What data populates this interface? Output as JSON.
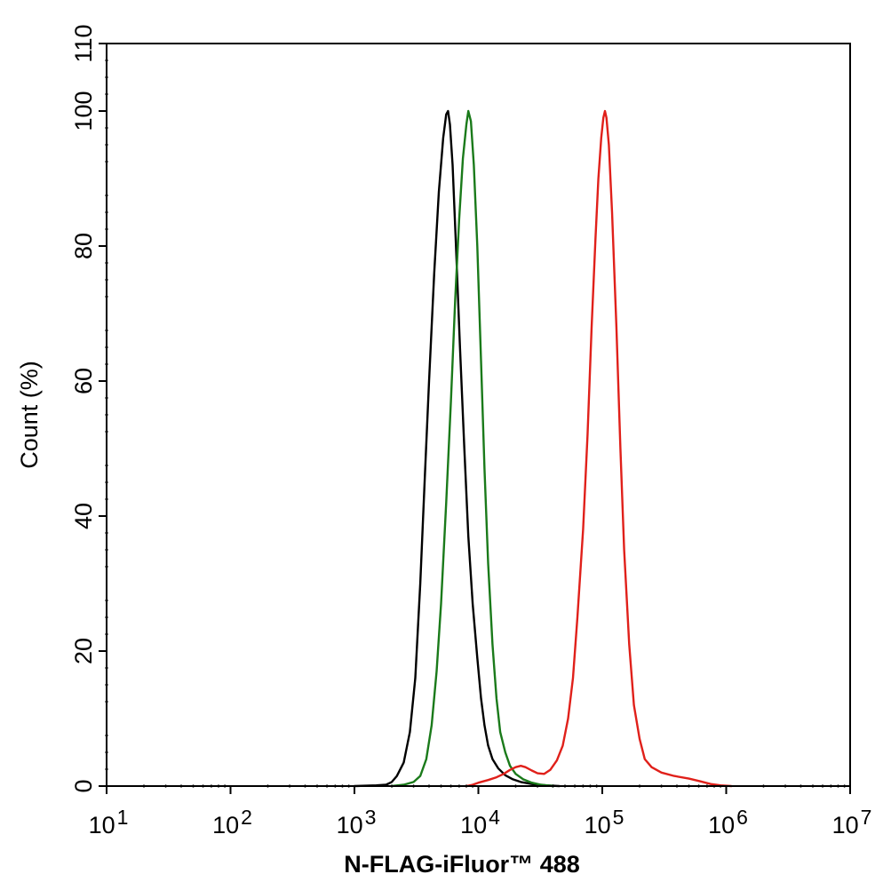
{
  "chart_data": {
    "type": "line",
    "title": "",
    "xlabel": "N-FLAG-iFluor™ 488",
    "ylabel": "Count  (%)",
    "x_scale": "log",
    "xlim": [
      10,
      10000000
    ],
    "ylim": [
      0,
      110
    ],
    "x_ticks": [
      {
        "base": "10",
        "exp": "1"
      },
      {
        "base": "10",
        "exp": "2"
      },
      {
        "base": "10",
        "exp": "3"
      },
      {
        "base": "10",
        "exp": "4"
      },
      {
        "base": "10",
        "exp": "5"
      },
      {
        "base": "10",
        "exp": "6"
      },
      {
        "base": "10",
        "exp": "7"
      }
    ],
    "y_ticks": [
      "0",
      "20",
      "40",
      "60",
      "80",
      "100",
      "110"
    ],
    "grid": false,
    "legend": null,
    "series": [
      {
        "color": "#000000",
        "points": [
          [
            1000,
            0
          ],
          [
            1500,
            0.1
          ],
          [
            1800,
            0.2
          ],
          [
            2000,
            0.6
          ],
          [
            2200,
            1.5
          ],
          [
            2500,
            3.5
          ],
          [
            2800,
            8
          ],
          [
            3100,
            16
          ],
          [
            3400,
            30
          ],
          [
            3700,
            46
          ],
          [
            4000,
            60
          ],
          [
            4400,
            76
          ],
          [
            4800,
            88
          ],
          [
            5200,
            96
          ],
          [
            5500,
            99.5
          ],
          [
            5700,
            100
          ],
          [
            5900,
            98
          ],
          [
            6200,
            92
          ],
          [
            6600,
            80
          ],
          [
            7100,
            65
          ],
          [
            7700,
            50
          ],
          [
            8300,
            37
          ],
          [
            9000,
            27
          ],
          [
            9800,
            19
          ],
          [
            10500,
            13
          ],
          [
            11200,
            9
          ],
          [
            12000,
            6
          ],
          [
            13000,
            4
          ],
          [
            14500,
            2.6
          ],
          [
            16500,
            1.6
          ],
          [
            19000,
            1
          ],
          [
            22000,
            0.6
          ],
          [
            27000,
            0.3
          ],
          [
            35000,
            0.1
          ],
          [
            45000,
            0
          ]
        ]
      },
      {
        "color": "#1a7a1a",
        "points": [
          [
            2000,
            0
          ],
          [
            2500,
            0.2
          ],
          [
            3000,
            0.6
          ],
          [
            3400,
            1.5
          ],
          [
            3800,
            4
          ],
          [
            4200,
            9
          ],
          [
            4600,
            17
          ],
          [
            5000,
            27
          ],
          [
            5500,
            42
          ],
          [
            6000,
            57
          ],
          [
            6500,
            72
          ],
          [
            7000,
            84
          ],
          [
            7500,
            93
          ],
          [
            8000,
            98
          ],
          [
            8300,
            100
          ],
          [
            8700,
            98.5
          ],
          [
            9200,
            92
          ],
          [
            9800,
            80
          ],
          [
            10500,
            63
          ],
          [
            11200,
            47
          ],
          [
            12000,
            33
          ],
          [
            13000,
            21
          ],
          [
            14000,
            13
          ],
          [
            15000,
            8
          ],
          [
            16500,
            5
          ],
          [
            18000,
            3
          ],
          [
            20000,
            1.8
          ],
          [
            23000,
            1
          ],
          [
            27000,
            0.5
          ],
          [
            32000,
            0.2
          ],
          [
            40000,
            0
          ]
        ]
      },
      {
        "color": "#e0201a",
        "points": [
          [
            8000,
            0
          ],
          [
            9000,
            0.2
          ],
          [
            10000,
            0.5
          ],
          [
            12000,
            0.9
          ],
          [
            14000,
            1.3
          ],
          [
            16000,
            1.8
          ],
          [
            18000,
            2.4
          ],
          [
            20000,
            2.8
          ],
          [
            22000,
            3
          ],
          [
            24000,
            2.8
          ],
          [
            27000,
            2.3
          ],
          [
            30000,
            1.9
          ],
          [
            34000,
            1.8
          ],
          [
            38000,
            2.4
          ],
          [
            43000,
            3.8
          ],
          [
            48000,
            6
          ],
          [
            53000,
            10
          ],
          [
            58000,
            16
          ],
          [
            63000,
            25
          ],
          [
            70000,
            38
          ],
          [
            76000,
            52
          ],
          [
            82000,
            68
          ],
          [
            88000,
            81
          ],
          [
            93000,
            90
          ],
          [
            98000,
            96
          ],
          [
            102000,
            99
          ],
          [
            105000,
            100
          ],
          [
            108000,
            99
          ],
          [
            113000,
            95
          ],
          [
            120000,
            85
          ],
          [
            130000,
            68
          ],
          [
            140000,
            50
          ],
          [
            150000,
            35
          ],
          [
            165000,
            21
          ],
          [
            180000,
            12
          ],
          [
            200000,
            7
          ],
          [
            220000,
            4
          ],
          [
            250000,
            2.8
          ],
          [
            300000,
            2
          ],
          [
            380000,
            1.5
          ],
          [
            500000,
            1.1
          ],
          [
            620000,
            0.7
          ],
          [
            750000,
            0.3
          ],
          [
            900000,
            0.1
          ],
          [
            1100000,
            0
          ]
        ]
      }
    ]
  }
}
